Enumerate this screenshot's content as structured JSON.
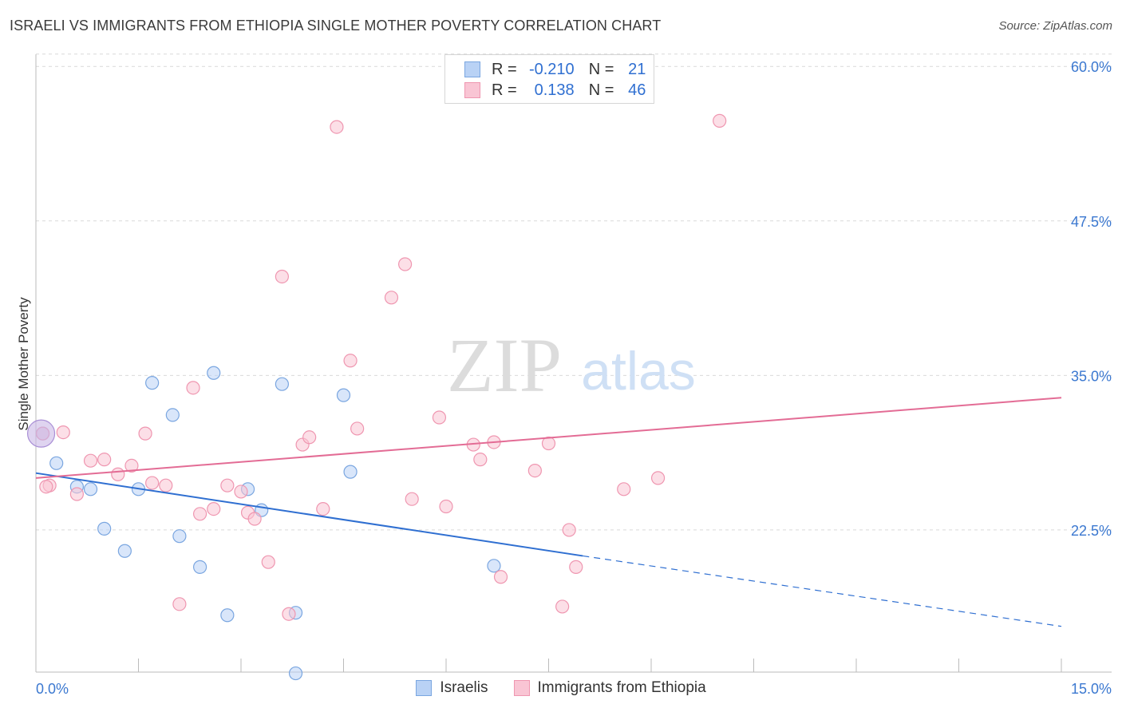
{
  "title": "ISRAELI VS IMMIGRANTS FROM ETHIOPIA SINGLE MOTHER POVERTY CORRELATION CHART",
  "source": "Source: ZipAtlas.com",
  "watermark": {
    "zip": "ZIP",
    "atlas": "atlas"
  },
  "colors": {
    "israeli_fill": "#b9d2f5",
    "israeli_stroke": "#7aa6e0",
    "israeli_line": "#2f6fd1",
    "ethiopia_fill": "#f9c5d4",
    "ethiopia_stroke": "#ef96b0",
    "ethiopia_line": "#e36c95",
    "tick_label": "#3b78d0",
    "grid": "#d9d9d9"
  },
  "legend_top": {
    "rows": [
      {
        "r_label": "R =",
        "r_value": "-0.210",
        "n_label": "N =",
        "n_value": "21"
      },
      {
        "r_label": "R =",
        "r_value": "0.138",
        "n_label": "N =",
        "n_value": "46"
      }
    ]
  },
  "legend_bottom": {
    "israelis": "Israelis",
    "ethiopia": "Immigrants from Ethiopia"
  },
  "chart_data": {
    "type": "scatter",
    "xlabel": "",
    "ylabel": "Single Mother Poverty",
    "xlim": [
      0,
      15
    ],
    "ylim": [
      11,
      61.5
    ],
    "x_tick_labels": [
      "0.0%",
      "15.0%"
    ],
    "y_ticks": [
      22.5,
      35.0,
      47.5,
      60.0
    ],
    "y_tick_labels": [
      "22.5%",
      "35.0%",
      "47.5%",
      "60.0%"
    ],
    "grid": true,
    "legend_position": "top-center",
    "series": [
      {
        "name": "Israelis",
        "points": [
          [
            0.1,
            30.3
          ],
          [
            0.3,
            27.9
          ],
          [
            0.6,
            26.0
          ],
          [
            0.8,
            25.8
          ],
          [
            1.0,
            22.6
          ],
          [
            1.3,
            20.8
          ],
          [
            1.5,
            25.8
          ],
          [
            1.7,
            34.4
          ],
          [
            2.0,
            31.8
          ],
          [
            2.1,
            22.0
          ],
          [
            2.4,
            19.5
          ],
          [
            2.6,
            35.2
          ],
          [
            2.8,
            15.6
          ],
          [
            3.1,
            25.8
          ],
          [
            3.3,
            24.1
          ],
          [
            3.6,
            34.3
          ],
          [
            3.8,
            15.8
          ],
          [
            3.8,
            10.9
          ],
          [
            4.5,
            33.4
          ],
          [
            4.6,
            27.2
          ],
          [
            6.7,
            19.6
          ]
        ],
        "trend": {
          "x0": 0,
          "y0": 27.1,
          "x1": 8.0,
          "y1": 20.4,
          "dashed_to_x": 15,
          "dashed_to_y": 14.7
        }
      },
      {
        "name": "Immigrants from Ethiopia",
        "points": [
          [
            0.2,
            26.1
          ],
          [
            0.4,
            30.4
          ],
          [
            0.6,
            25.4
          ],
          [
            0.8,
            28.1
          ],
          [
            1.0,
            28.2
          ],
          [
            1.2,
            27.0
          ],
          [
            1.4,
            27.7
          ],
          [
            1.6,
            30.3
          ],
          [
            1.7,
            26.3
          ],
          [
            1.9,
            26.1
          ],
          [
            2.1,
            16.5
          ],
          [
            2.3,
            34.0
          ],
          [
            2.4,
            23.8
          ],
          [
            2.6,
            24.2
          ],
          [
            2.8,
            26.1
          ],
          [
            3.0,
            25.6
          ],
          [
            3.1,
            23.9
          ],
          [
            3.2,
            23.4
          ],
          [
            3.4,
            19.9
          ],
          [
            3.6,
            43.0
          ],
          [
            3.7,
            15.7
          ],
          [
            3.9,
            29.4
          ],
          [
            4.0,
            30.0
          ],
          [
            4.2,
            24.2
          ],
          [
            4.4,
            55.1
          ],
          [
            4.6,
            36.2
          ],
          [
            4.7,
            30.7
          ],
          [
            5.2,
            41.3
          ],
          [
            5.4,
            44.0
          ],
          [
            5.5,
            25.0
          ],
          [
            5.9,
            31.6
          ],
          [
            6.0,
            24.4
          ],
          [
            6.4,
            29.4
          ],
          [
            6.5,
            28.2
          ],
          [
            6.7,
            29.6
          ],
          [
            6.8,
            18.7
          ],
          [
            7.3,
            27.3
          ],
          [
            7.5,
            29.5
          ],
          [
            7.7,
            16.3
          ],
          [
            7.8,
            22.5
          ],
          [
            7.9,
            19.5
          ],
          [
            8.6,
            25.8
          ],
          [
            9.1,
            26.7
          ],
          [
            10.0,
            55.6
          ],
          [
            0.1,
            30.3
          ],
          [
            0.15,
            26.0
          ]
        ],
        "trend": {
          "x0": 0,
          "y0": 26.7,
          "x1": 15,
          "y1": 33.2
        }
      }
    ]
  }
}
